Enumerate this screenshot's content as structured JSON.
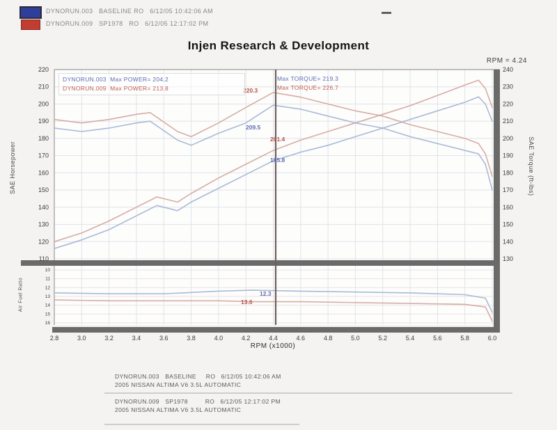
{
  "header": {
    "runs": [
      {
        "swatch_color": "#2e3e99",
        "label": "DYNORUN.003   BASELINE RO   6/12/05 10:42:06 AM"
      },
      {
        "swatch_color": "#c23c30",
        "label": "DYNORUN.009   SP1978   RO   6/12/05 12:17:02 PM"
      }
    ]
  },
  "title": "Injen Research & Development",
  "cursor_readout": "RPM = 4.24",
  "legend": {
    "power": [
      {
        "text": "DYNORUN.003  Max POWER= 204.2",
        "color": "#5d6cb2"
      },
      {
        "text": "DYNORUN.009  Max POWER= 213.8",
        "color": "#bd5c52"
      }
    ],
    "torque": [
      {
        "text": "Max TORQUE= 219.3",
        "color": "#5d6cb2"
      },
      {
        "text": "Max TORQUE= 226.7",
        "color": "#bd5c52"
      }
    ]
  },
  "annotations": [
    {
      "text": "220.3",
      "color": "#b5544a"
    },
    {
      "text": "209.5",
      "color": "#5d6cb2"
    },
    {
      "text": "201.4",
      "color": "#b5544a"
    },
    {
      "text": "195.8",
      "color": "#5d6cb2"
    },
    {
      "text": "12.3",
      "color": "#5d6cb2"
    },
    {
      "text": "13.6",
      "color": "#b5544a"
    }
  ],
  "chart_data": {
    "type": "line",
    "title": "Injen Research & Development",
    "cursor_rpm": 4.24,
    "x_axis": {
      "label": "RPM (x1000)",
      "range": [
        2.8,
        6.0
      ],
      "ticks": [
        "2.8",
        "3.0",
        "3.2",
        "3.4",
        "3.6",
        "3.8",
        "4.0",
        "4.2",
        "4.4",
        "4.6",
        "4.8",
        "5.0",
        "5.2",
        "5.4",
        "5.6",
        "5.8",
        "6.0"
      ]
    },
    "y_axis_left": {
      "label": "SAE Horsepower",
      "range": [
        110,
        220
      ],
      "ticks": [
        "220",
        "210",
        "200",
        "190",
        "180",
        "170",
        "160",
        "150",
        "140",
        "130",
        "120",
        "110"
      ]
    },
    "y_axis_right": {
      "label": "SAE Torque (ft-lbs)",
      "range": [
        130,
        240
      ],
      "ticks": [
        "240",
        "230",
        "220",
        "210",
        "200",
        "190",
        "180",
        "170",
        "160",
        "150",
        "140",
        "130"
      ]
    },
    "y_axis_afr": {
      "label": "Air Fuel Ratio",
      "range": [
        10,
        16
      ],
      "ticks": [
        "10",
        "11",
        "12",
        "13",
        "14",
        "15",
        "16"
      ]
    },
    "max_values": {
      "power": [
        204.2,
        213.8
      ],
      "torque": [
        219.3,
        226.7
      ]
    },
    "series": [
      {
        "name": "DYNORUN.003 Power",
        "axis": "left",
        "color": "#a3b4d2",
        "x": [
          2.8,
          3.0,
          3.2,
          3.4,
          3.55,
          3.7,
          3.8,
          4.0,
          4.2,
          4.4,
          4.6,
          4.8,
          5.0,
          5.2,
          5.4,
          5.6,
          5.8,
          5.9,
          5.95,
          6.0
        ],
        "values": [
          116,
          121,
          127,
          135,
          141,
          138,
          143,
          151,
          159,
          167,
          172,
          176,
          181,
          186,
          191,
          196,
          201,
          204.2,
          200,
          190
        ]
      },
      {
        "name": "DYNORUN.009 Power",
        "axis": "left",
        "color": "#d2a59e",
        "x": [
          2.8,
          3.0,
          3.2,
          3.4,
          3.55,
          3.7,
          3.8,
          4.0,
          4.2,
          4.4,
          4.6,
          4.8,
          5.0,
          5.2,
          5.4,
          5.6,
          5.8,
          5.9,
          5.95,
          6.0
        ],
        "values": [
          120,
          125,
          132,
          140,
          146,
          143,
          148,
          157,
          165,
          173,
          179,
          184,
          189,
          194,
          199,
          205,
          211,
          213.8,
          209,
          198
        ]
      },
      {
        "name": "DYNORUN.003 Torque",
        "axis": "right",
        "color": "#a3b4d2",
        "x": [
          2.8,
          3.0,
          3.2,
          3.4,
          3.5,
          3.7,
          3.8,
          4.0,
          4.2,
          4.4,
          4.6,
          4.8,
          5.0,
          5.2,
          5.4,
          5.6,
          5.8,
          5.9,
          5.95,
          6.0
        ],
        "values": [
          206,
          204,
          206,
          209,
          210,
          199,
          196,
          203,
          209,
          219.3,
          217,
          213,
          209,
          206,
          201,
          197,
          193,
          191,
          185,
          170
        ]
      },
      {
        "name": "DYNORUN.009 Torque",
        "axis": "right",
        "color": "#d2a59e",
        "x": [
          2.8,
          3.0,
          3.2,
          3.4,
          3.5,
          3.7,
          3.8,
          4.0,
          4.2,
          4.4,
          4.6,
          4.8,
          5.0,
          5.2,
          5.4,
          5.6,
          5.8,
          5.9,
          5.95,
          6.0
        ],
        "values": [
          211,
          209,
          211,
          214,
          215,
          204,
          201,
          209,
          218,
          226.7,
          224,
          220,
          216,
          213,
          208,
          204,
          200,
          197,
          191,
          178
        ]
      },
      {
        "name": "DYNORUN.003 AFR",
        "axis": "afr",
        "color": "#a3b4d2",
        "x": [
          2.8,
          3.2,
          3.6,
          4.0,
          4.24,
          4.6,
          5.0,
          5.4,
          5.8,
          5.95,
          6.0
        ],
        "values": [
          12.6,
          12.7,
          12.7,
          12.4,
          12.3,
          12.4,
          12.5,
          12.6,
          12.8,
          13.2,
          14.8
        ]
      },
      {
        "name": "DYNORUN.009 AFR",
        "axis": "afr",
        "color": "#d2a59e",
        "x": [
          2.8,
          3.2,
          3.6,
          4.0,
          4.24,
          4.6,
          5.0,
          5.4,
          5.8,
          5.95,
          6.0
        ],
        "values": [
          13.4,
          13.5,
          13.5,
          13.5,
          13.6,
          13.6,
          13.7,
          13.8,
          13.9,
          14.2,
          15.8
        ]
      }
    ]
  },
  "footer": {
    "entries": [
      {
        "run": "DYNORUN.003   BASELINE     RO   6/12/05 10:42:06 AM",
        "vehicle": "2005 NISSAN ALTIMA V6 3.5L AUTOMATIC"
      },
      {
        "run": "DYNORUN.009   SP1978         RO   6/12/05 12:17:02 PM",
        "vehicle": "2005 NISSAN ALTIMA V6 3.5L AUTOMATIC"
      }
    ]
  }
}
